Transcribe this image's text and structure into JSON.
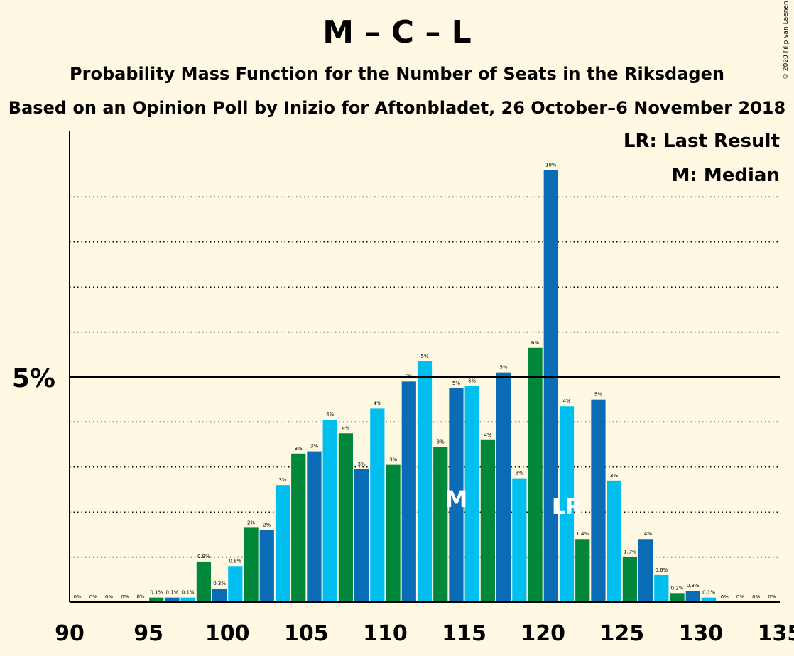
{
  "header": {
    "title": "M – C – L",
    "subtitle": "Probability Mass Function for the Number of Seats in the Riksdagen",
    "subtitle2": "Based on an Opinion Poll by Inizio for Aftonbladet, 26 October–6 November 2018",
    "copyright": "© 2020 Filip van Laenen"
  },
  "legend": {
    "last_result": "LR: Last Result",
    "median": "M: Median"
  },
  "colors": {
    "background": "#FFF9E3",
    "series": [
      "#0A6BB7",
      "#00BFEF",
      "#00873A"
    ]
  },
  "chart_data": {
    "type": "bar",
    "xlim": [
      90,
      135
    ],
    "ylim": [
      0,
      10.5
    ],
    "x_ticks": [
      90,
      95,
      100,
      105,
      110,
      115,
      120,
      125,
      130,
      135
    ],
    "y_tick_label": "5%",
    "y_tick_value": 5,
    "gridlines": [
      1,
      2,
      3,
      4,
      6,
      7,
      8,
      9
    ],
    "median_seat": 114,
    "median_label": "M",
    "last_result_seat": 121,
    "last_result_label": "LR",
    "seats": [
      90,
      91,
      92,
      93,
      94,
      95,
      96,
      97,
      98,
      99,
      100,
      101,
      102,
      103,
      104,
      105,
      106,
      107,
      108,
      109,
      110,
      111,
      112,
      113,
      114,
      115,
      116,
      117,
      118,
      119,
      120,
      121,
      122,
      123,
      124,
      125,
      126,
      127,
      128,
      129,
      130,
      131,
      132,
      133,
      134
    ],
    "values": [
      0,
      0,
      0,
      0,
      0.01,
      0.1,
      0.1,
      0.1,
      0.9,
      0.3,
      0.8,
      1.65,
      1.6,
      2.6,
      3.3,
      3.35,
      4.05,
      3.75,
      2.95,
      4.3,
      3.05,
      4.9,
      5.35,
      3.45,
      4.75,
      4.8,
      3.6,
      5.1,
      2.75,
      5.65,
      9.6,
      4.35,
      1.4,
      4.5,
      2.7,
      1.0,
      1.4,
      0.6,
      0.2,
      0.25,
      0.1,
      0,
      0,
      0,
      0
    ],
    "labels": [
      "0%",
      "0%",
      "0%",
      "0%",
      "0%",
      "0.1%",
      "0.1%",
      "0.1%",
      "0.9%",
      "0.3%",
      "0.8%",
      "2%",
      "2%",
      "3%",
      "3%",
      "3%",
      "4%",
      "4%",
      "3%",
      "4%",
      "3%",
      "5%",
      "5%",
      "3%",
      "5%",
      "5%",
      "4%",
      "5%",
      "3%",
      "6%",
      "10%",
      "4%",
      "1.4%",
      "5%",
      "3%",
      "1.0%",
      "1.4%",
      "0.6%",
      "0.2%",
      "0.3%",
      "0.1%",
      "0%",
      "0%",
      "0%",
      "0%"
    ]
  }
}
